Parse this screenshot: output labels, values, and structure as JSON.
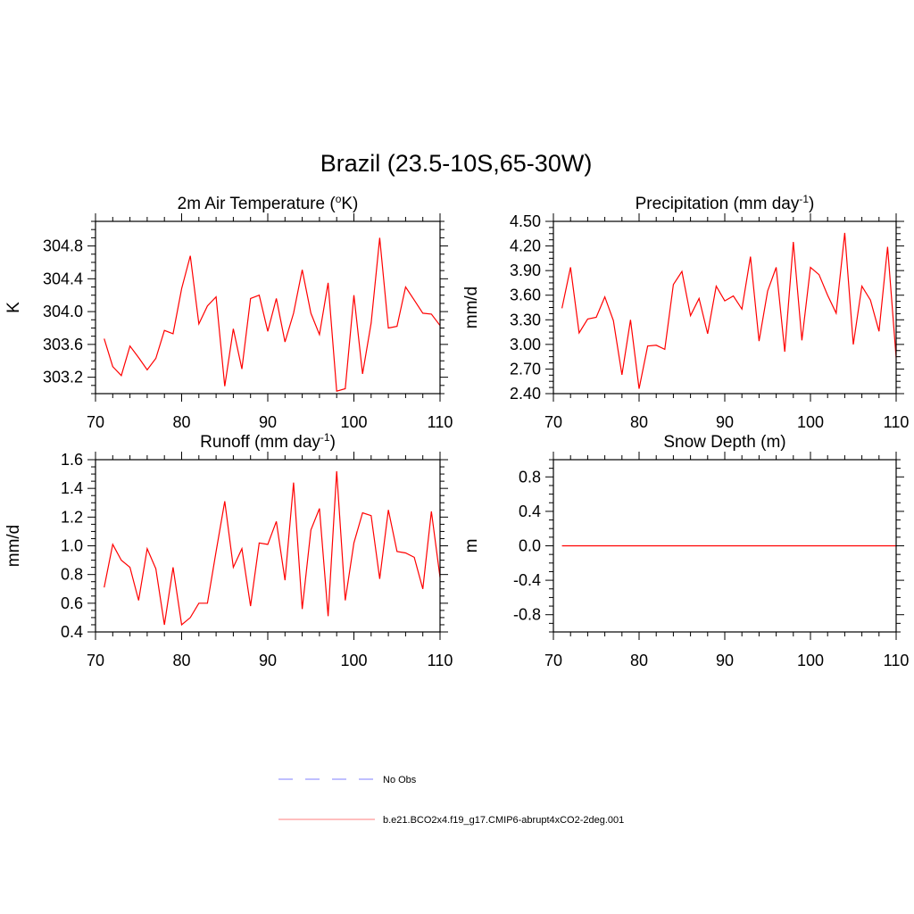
{
  "figure": {
    "title": "Brazil (23.5-10S,65-30W)"
  },
  "chart_data": [
    {
      "type": "line",
      "title": "2m Air Temperature (",
      "title_sup": "o",
      "title_tail": "K)",
      "xlabel": "",
      "ylabel": "K",
      "xlim": [
        70,
        110
      ],
      "ylim": [
        303.0,
        305.1
      ],
      "xticks": [
        70,
        80,
        90,
        100,
        110
      ],
      "yticks": [
        303.2,
        303.6,
        304.0,
        304.4,
        304.8
      ],
      "ytick_labels": [
        "303.2",
        "303.6",
        "304.0",
        "304.4",
        "304.8"
      ],
      "series": [
        {
          "color": "#ff0000",
          "x": [
            71,
            72,
            73,
            74,
            75,
            76,
            77,
            78,
            79,
            80,
            81,
            82,
            83,
            84,
            85,
            86,
            87,
            88,
            89,
            90,
            91,
            92,
            93,
            94,
            95,
            96,
            97,
            98,
            99,
            100,
            101,
            102,
            103,
            104,
            105,
            106,
            107,
            108,
            109,
            110
          ],
          "y": [
            303.67,
            303.33,
            303.22,
            303.58,
            303.44,
            303.29,
            303.43,
            303.77,
            303.73,
            304.28,
            304.68,
            303.85,
            304.07,
            304.18,
            303.09,
            303.79,
            303.3,
            304.16,
            304.2,
            303.76,
            304.16,
            303.63,
            303.98,
            304.51,
            303.98,
            303.72,
            304.35,
            303.03,
            303.06,
            304.2,
            303.24,
            303.86,
            304.9,
            303.8,
            303.82,
            304.3,
            304.14,
            303.98,
            303.97,
            303.83
          ]
        }
      ]
    },
    {
      "type": "line",
      "title": "Precipitation (mm day",
      "title_sup": "-1",
      "title_tail": ")",
      "xlabel": "",
      "ylabel": "mm/d",
      "xlim": [
        70,
        110
      ],
      "ylim": [
        2.4,
        4.5
      ],
      "xticks": [
        70,
        80,
        90,
        100,
        110
      ],
      "yticks": [
        2.4,
        2.7,
        3.0,
        3.3,
        3.6,
        3.9,
        4.2,
        4.5
      ],
      "ytick_labels": [
        "2.40",
        "2.70",
        "3.00",
        "3.30",
        "3.60",
        "3.90",
        "4.20",
        "4.50"
      ],
      "series": [
        {
          "color": "#ff0000",
          "x": [
            71,
            72,
            73,
            74,
            75,
            76,
            77,
            78,
            79,
            80,
            81,
            82,
            83,
            84,
            85,
            86,
            87,
            88,
            89,
            90,
            91,
            92,
            93,
            94,
            95,
            96,
            97,
            98,
            99,
            100,
            101,
            102,
            103,
            104,
            105,
            106,
            107,
            108,
            109,
            110
          ],
          "y": [
            3.44,
            3.94,
            3.14,
            3.31,
            3.33,
            3.58,
            3.29,
            2.63,
            3.3,
            2.46,
            2.98,
            2.99,
            2.94,
            3.73,
            3.89,
            3.35,
            3.56,
            3.13,
            3.71,
            3.53,
            3.59,
            3.43,
            4.07,
            3.04,
            3.65,
            3.94,
            2.91,
            4.25,
            3.05,
            3.94,
            3.85,
            3.6,
            3.38,
            4.36,
            3.0,
            3.71,
            3.54,
            3.16,
            4.19,
            2.84
          ]
        }
      ]
    },
    {
      "type": "line",
      "title": "Runoff (mm day",
      "title_sup": "-1",
      "title_tail": ")",
      "xlabel": "",
      "ylabel": "mm/d",
      "xlim": [
        70,
        110
      ],
      "ylim": [
        0.4,
        1.6
      ],
      "xticks": [
        70,
        80,
        90,
        100,
        110
      ],
      "yticks": [
        0.4,
        0.6,
        0.8,
        1.0,
        1.2,
        1.4,
        1.6
      ],
      "ytick_labels": [
        "0.4",
        "0.6",
        "0.8",
        "1.0",
        "1.2",
        "1.4",
        "1.6"
      ],
      "series": [
        {
          "color": "#ff0000",
          "x": [
            71,
            72,
            73,
            74,
            75,
            76,
            77,
            78,
            79,
            80,
            81,
            82,
            83,
            84,
            85,
            86,
            87,
            88,
            89,
            90,
            91,
            92,
            93,
            94,
            95,
            96,
            97,
            98,
            99,
            100,
            101,
            102,
            103,
            104,
            105,
            106,
            107,
            108,
            109,
            110
          ],
          "y": [
            0.71,
            1.01,
            0.9,
            0.85,
            0.62,
            0.98,
            0.84,
            0.45,
            0.85,
            0.45,
            0.5,
            0.6,
            0.6,
            0.96,
            1.31,
            0.85,
            0.98,
            0.58,
            1.02,
            1.01,
            1.17,
            0.76,
            1.44,
            0.56,
            1.11,
            1.26,
            0.51,
            1.52,
            0.62,
            1.02,
            1.23,
            1.21,
            0.77,
            1.25,
            0.96,
            0.95,
            0.92,
            0.7,
            1.24,
            0.78
          ]
        }
      ]
    },
    {
      "type": "line",
      "title": "Snow Depth (m)",
      "title_sup": "",
      "title_tail": "",
      "xlabel": "",
      "ylabel": "m",
      "xlim": [
        70,
        110
      ],
      "ylim": [
        -1.0,
        1.0
      ],
      "xticks": [
        70,
        80,
        90,
        100,
        110
      ],
      "yticks": [
        -0.8,
        -0.4,
        0.0,
        0.4,
        0.8
      ],
      "ytick_labels": [
        "-0.8",
        "-0.4",
        "0.0",
        "0.4",
        "0.8"
      ],
      "series": [
        {
          "color": "#ff0000",
          "x": [
            71,
            110
          ],
          "y": [
            0.0,
            0.0
          ]
        }
      ]
    }
  ],
  "legend": {
    "placement": "bottom-center",
    "items": [
      {
        "label": "No Obs",
        "color": "#9999ff",
        "style": "dashed"
      },
      {
        "label": "b.e21.BCO2x4.f19_g17.CMIP6-abrupt4xCO2-2deg.001",
        "color": "#ff9999",
        "style": "solid"
      }
    ]
  }
}
